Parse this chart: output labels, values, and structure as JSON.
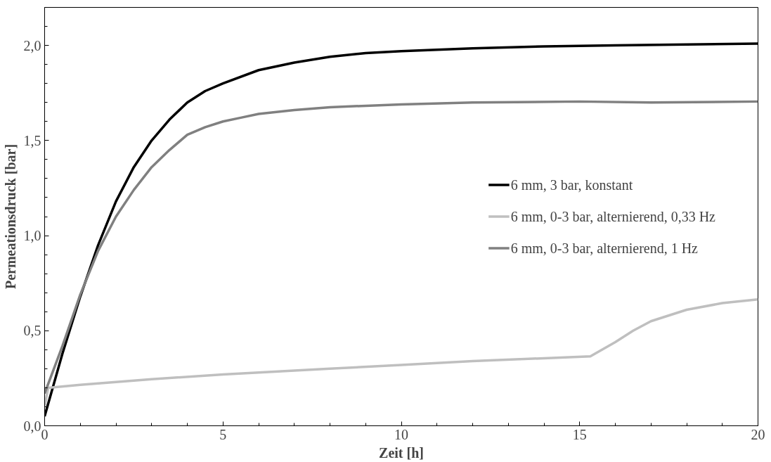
{
  "chart_data": {
    "type": "line",
    "xlabel": "Zeit [h]",
    "ylabel": "Permeationsdruck [bar]",
    "xlim": [
      0,
      20
    ],
    "ylim": [
      0,
      2.2
    ],
    "xticks": [
      0,
      5,
      10,
      15,
      20
    ],
    "yticks": [
      {
        "value": 0,
        "label": "0,0"
      },
      {
        "value": 0.5,
        "label": "0,5"
      },
      {
        "value": 1.0,
        "label": "1,0"
      },
      {
        "value": 1.5,
        "label": "1,5"
      },
      {
        "value": 2.0,
        "label": "2,0"
      }
    ],
    "grid": false,
    "legend": "right",
    "marker": "none",
    "line_style": "solid",
    "series": [
      {
        "name": "6 mm, 3 bar, konstant",
        "color": "#000000",
        "x": [
          0,
          0.5,
          1,
          1.5,
          2,
          2.5,
          3,
          3.5,
          4,
          4.5,
          5,
          6,
          7,
          8,
          9,
          10,
          12,
          14,
          16,
          18,
          20
        ],
        "values": [
          0.05,
          0.38,
          0.68,
          0.95,
          1.18,
          1.36,
          1.5,
          1.61,
          1.7,
          1.76,
          1.8,
          1.87,
          1.91,
          1.94,
          1.96,
          1.97,
          1.985,
          1.995,
          2.0,
          2.005,
          2.01
        ]
      },
      {
        "name": "6 mm, 0-3 bar, alternierend, 0,33 Hz",
        "color": "#bfbfbf",
        "x": [
          0,
          0.1,
          1,
          3,
          5,
          8,
          10,
          12,
          15.3,
          16,
          16.5,
          17,
          18,
          19,
          20
        ],
        "values": [
          0.1,
          0.2,
          0.215,
          0.245,
          0.27,
          0.3,
          0.32,
          0.34,
          0.365,
          0.44,
          0.5,
          0.55,
          0.61,
          0.645,
          0.665
        ]
      },
      {
        "name": "6 mm, 0-3 bar, alternierend, 1 Hz",
        "color": "#808080",
        "x": [
          0,
          0.5,
          1,
          1.5,
          2,
          2.5,
          3,
          3.5,
          4,
          4.5,
          5,
          5.5,
          6,
          7,
          8,
          10,
          12,
          15,
          17,
          20
        ],
        "values": [
          0.17,
          0.42,
          0.69,
          0.92,
          1.1,
          1.24,
          1.36,
          1.45,
          1.53,
          1.57,
          1.6,
          1.62,
          1.64,
          1.66,
          1.675,
          1.69,
          1.7,
          1.705,
          1.7,
          1.705
        ]
      }
    ]
  }
}
